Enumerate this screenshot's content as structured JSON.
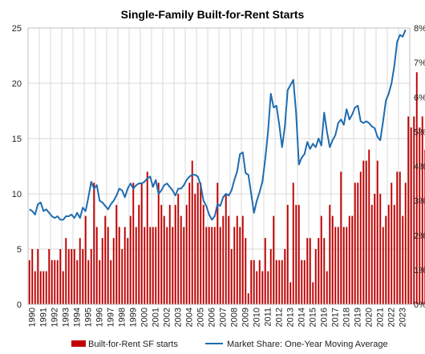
{
  "chart_data": {
    "type": "bar",
    "title": "Single-Family Built-for-Rent Starts",
    "x_ticks": [
      "1990",
      "1991",
      "1992",
      "1993",
      "1994",
      "1995",
      "1996",
      "1997",
      "1998",
      "1999",
      "2000",
      "2001",
      "2002",
      "2003",
      "2004",
      "2005",
      "2006",
      "2007",
      "2008",
      "2009",
      "2010",
      "2011",
      "2012",
      "2013",
      "2014",
      "2015",
      "2016",
      "2017",
      "2018",
      "2019",
      "2020",
      "2021",
      "2022",
      "2023"
    ],
    "y_left": {
      "ticks": [
        "0",
        "5",
        "10",
        "15",
        "20",
        "25"
      ],
      "range": [
        0,
        25
      ]
    },
    "y_right": {
      "ticks": [
        "0%",
        "1%",
        "2%",
        "3%",
        "4%",
        "5%",
        "6%",
        "7%",
        "8%"
      ],
      "range": [
        0,
        8
      ]
    },
    "grid": true,
    "legend_position": "bottom",
    "colors": {
      "bars": "#c00000",
      "line": "#1f6cb0",
      "grid": "#d9d9d9"
    },
    "series": [
      {
        "name": "Built-for-Rent SF starts",
        "axis": "left",
        "type": "bar",
        "quarterly_values": [
          4,
          5,
          3,
          5,
          3,
          3,
          3,
          5,
          4,
          4,
          4,
          5,
          3,
          6,
          5,
          5,
          5,
          4,
          6,
          5,
          8,
          4,
          5,
          11,
          7,
          4,
          6,
          8,
          7,
          4,
          6,
          9,
          7,
          5,
          7,
          6,
          8,
          11,
          7,
          9,
          11,
          7,
          12,
          7,
          7,
          7,
          11,
          9,
          8,
          7,
          9,
          7,
          9,
          10,
          8,
          7,
          9,
          11,
          13,
          10,
          11,
          11,
          9,
          7,
          7,
          7,
          7,
          11,
          7,
          8,
          10,
          8,
          5,
          7,
          8,
          7,
          8,
          6,
          1,
          4,
          4,
          3,
          4,
          3,
          6,
          3,
          5,
          8,
          4,
          4,
          4,
          5,
          9,
          2,
          11,
          9,
          9,
          4,
          4,
          6,
          6,
          2,
          5,
          6,
          8,
          6,
          3,
          9,
          8,
          7,
          7,
          12,
          7,
          7,
          8,
          8,
          11,
          11,
          12,
          13,
          13,
          14,
          9,
          10,
          13,
          10,
          7,
          8,
          9,
          11,
          9,
          12,
          12,
          8,
          11,
          17,
          16,
          17,
          21,
          16,
          17,
          14
        ]
      },
      {
        "name": "Market Share: One-Year Moving Average",
        "axis": "right",
        "type": "line",
        "quarterly_values": [
          2.75,
          2.7,
          2.6,
          2.9,
          2.95,
          2.7,
          2.75,
          2.65,
          2.55,
          2.5,
          2.55,
          2.45,
          2.45,
          2.55,
          2.55,
          2.6,
          2.5,
          2.65,
          2.5,
          2.8,
          2.7,
          3.1,
          3.55,
          3.35,
          3.45,
          3.0,
          2.95,
          2.85,
          2.75,
          2.9,
          3.0,
          3.15,
          3.35,
          3.3,
          3.1,
          3.35,
          3.5,
          3.35,
          3.45,
          3.5,
          3.5,
          3.55,
          3.65,
          3.7,
          3.4,
          3.6,
          3.2,
          3.3,
          3.45,
          3.5,
          3.4,
          3.3,
          3.15,
          3.35,
          3.35,
          3.45,
          3.6,
          3.7,
          3.75,
          3.75,
          3.7,
          3.45,
          3.0,
          2.85,
          2.6,
          2.45,
          2.55,
          2.9,
          2.85,
          3.1,
          3.2,
          3.15,
          3.3,
          3.6,
          3.85,
          4.35,
          4.4,
          3.8,
          3.75,
          3.2,
          2.65,
          3.0,
          3.25,
          3.55,
          4.2,
          5.0,
          6.1,
          5.7,
          5.75,
          5.2,
          4.55,
          5.15,
          6.2,
          6.35,
          6.5,
          5.55,
          4.05,
          4.25,
          4.35,
          4.7,
          4.5,
          4.65,
          4.55,
          4.8,
          4.6,
          5.55,
          5.0,
          4.55,
          4.75,
          4.9,
          5.25,
          5.35,
          5.2,
          5.65,
          5.35,
          5.5,
          5.7,
          5.75,
          5.3,
          5.25,
          5.3,
          5.25,
          5.15,
          5.1,
          4.85,
          4.75,
          5.3,
          5.9,
          6.1,
          6.4,
          6.9,
          7.6,
          7.8,
          7.75,
          7.95
        ]
      }
    ]
  }
}
